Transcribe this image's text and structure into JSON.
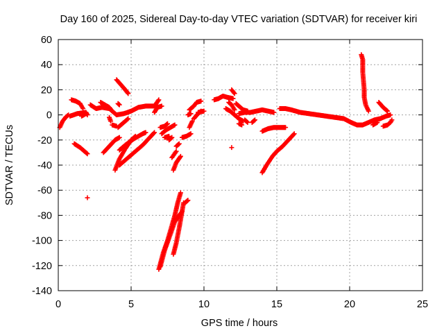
{
  "chart_data": {
    "type": "scatter",
    "title": "Day 160 of 2025, Sidereal Day-to-day VTEC variation (SDTVAR) for receiver kiri",
    "xlabel": "GPS time / hours",
    "ylabel": "SDTVAR / TECUs",
    "xlim": [
      0,
      25
    ],
    "ylim": [
      -140,
      60
    ],
    "xticks": [
      0,
      5,
      10,
      15,
      20,
      25
    ],
    "yticks": [
      -140,
      -120,
      -100,
      -80,
      -60,
      -40,
      -20,
      0,
      20,
      40,
      60
    ],
    "grid": true,
    "legend": "none",
    "marker": "plus",
    "color": "#ff0000",
    "tracks": [
      [
        [
          0.1,
          -10
        ],
        [
          0.3,
          -5
        ],
        [
          0.5,
          -2
        ],
        [
          0.7,
          0
        ]
      ],
      [
        [
          0.8,
          -1
        ],
        [
          1.3,
          1
        ],
        [
          1.9,
          2
        ],
        [
          2.0,
          0
        ]
      ],
      [
        [
          0.9,
          12
        ],
        [
          1.2,
          11
        ],
        [
          1.5,
          9
        ],
        [
          1.7,
          5
        ]
      ],
      [
        [
          1.1,
          -23
        ],
        [
          1.5,
          -26
        ],
        [
          1.8,
          -29
        ],
        [
          2.0,
          -31
        ]
      ],
      [
        [
          2.0,
          -66
        ]
      ],
      [
        [
          2.2,
          8
        ],
        [
          2.6,
          5
        ],
        [
          3.0,
          6
        ],
        [
          3.5,
          5
        ],
        [
          4.0,
          0
        ],
        [
          4.5,
          1
        ],
        [
          5.0,
          3
        ],
        [
          5.5,
          6
        ],
        [
          6.0,
          7
        ],
        [
          6.6,
          7
        ],
        [
          6.9,
          12
        ]
      ],
      [
        [
          2.9,
          10
        ],
        [
          3.2,
          8
        ],
        [
          3.5,
          6
        ],
        [
          3.7,
          3
        ]
      ],
      [
        [
          3.5,
          -2
        ],
        [
          3.6,
          -5
        ]
      ],
      [
        [
          3.7,
          -8
        ],
        [
          4.0,
          -9
        ]
      ],
      [
        [
          1.6,
          -1
        ],
        [
          1.9,
          1
        ]
      ],
      [
        [
          3.1,
          -30
        ],
        [
          3.5,
          -25
        ],
        [
          3.9,
          -20
        ],
        [
          4.2,
          -18
        ]
      ],
      [
        [
          4.0,
          28
        ],
        [
          4.3,
          24
        ],
        [
          4.6,
          20
        ],
        [
          4.8,
          17
        ]
      ],
      [
        [
          3.9,
          -44
        ],
        [
          4.2,
          -35
        ],
        [
          4.6,
          -27
        ],
        [
          5.0,
          -20
        ],
        [
          5.3,
          -17
        ]
      ],
      [
        [
          4.1,
          -10
        ],
        [
          4.5,
          -6
        ],
        [
          4.8,
          -3
        ]
      ],
      [
        [
          4.2,
          -28
        ],
        [
          4.6,
          -24
        ],
        [
          5.2,
          -19
        ],
        [
          5.8,
          -15
        ],
        [
          6.0,
          -14
        ]
      ],
      [
        [
          4.1,
          9
        ],
        [
          4.2,
          8
        ]
      ],
      [
        [
          4.2,
          -40
        ],
        [
          4.8,
          -34
        ],
        [
          5.3,
          -29
        ],
        [
          5.8,
          -24
        ],
        [
          6.2,
          -19
        ],
        [
          6.6,
          -14
        ]
      ],
      [
        [
          6.6,
          2
        ],
        [
          6.8,
          6
        ],
        [
          7.1,
          7
        ]
      ],
      [
        [
          6.9,
          -123
        ],
        [
          7.2,
          -110
        ],
        [
          7.5,
          -100
        ],
        [
          7.8,
          -88
        ],
        [
          8.0,
          -80
        ],
        [
          8.2,
          -70
        ],
        [
          8.4,
          -62
        ]
      ],
      [
        [
          7.0,
          -121
        ],
        [
          7.3,
          -108
        ],
        [
          7.7,
          -95
        ],
        [
          8.0,
          -85
        ],
        [
          8.3,
          -80
        ],
        [
          8.5,
          -77
        ]
      ],
      [
        [
          7.9,
          -111
        ],
        [
          8.1,
          -102
        ],
        [
          8.3,
          -90
        ],
        [
          8.6,
          -70
        ]
      ],
      [
        [
          7.1,
          -15
        ],
        [
          7.4,
          -12
        ],
        [
          7.7,
          -10
        ],
        [
          8.0,
          -8
        ]
      ],
      [
        [
          7.0,
          -10
        ],
        [
          7.3,
          -9
        ],
        [
          7.5,
          -7
        ]
      ],
      [
        [
          7.3,
          -18
        ],
        [
          7.6,
          -17
        ]
      ],
      [
        [
          7.6,
          -20
        ],
        [
          7.8,
          -18
        ]
      ],
      [
        [
          7.9,
          -44
        ],
        [
          8.1,
          -38
        ],
        [
          8.4,
          -33
        ]
      ],
      [
        [
          7.8,
          -34
        ],
        [
          8.1,
          -29
        ]
      ],
      [
        [
          8.1,
          -25
        ],
        [
          8.3,
          -23
        ]
      ],
      [
        [
          8.5,
          -18
        ],
        [
          8.8,
          -17
        ],
        [
          9.1,
          -15
        ]
      ],
      [
        [
          8.7,
          -70
        ],
        [
          8.9,
          -68
        ]
      ],
      [
        [
          9.0,
          -10
        ],
        [
          9.2,
          -5
        ]
      ],
      [
        [
          9.3,
          -3
        ],
        [
          9.6,
          1
        ],
        [
          9.8,
          3
        ]
      ],
      [
        [
          9.0,
          4
        ],
        [
          9.3,
          7
        ],
        [
          9.5,
          10
        ],
        [
          9.8,
          11
        ]
      ],
      [
        [
          9.6,
          2
        ],
        [
          10.0,
          3
        ]
      ],
      [
        [
          8.9,
          0
        ],
        [
          9.1,
          1
        ]
      ],
      [
        [
          10.7,
          12
        ],
        [
          11.0,
          13
        ],
        [
          11.3,
          15
        ],
        [
          11.6,
          14
        ],
        [
          12.0,
          13
        ]
      ],
      [
        [
          11.5,
          5
        ],
        [
          11.8,
          3
        ],
        [
          12.1,
          0
        ],
        [
          12.4,
          -3
        ],
        [
          12.7,
          -5
        ]
      ],
      [
        [
          11.7,
          10
        ],
        [
          11.9,
          8
        ],
        [
          12.1,
          4
        ]
      ],
      [
        [
          11.9,
          20
        ],
        [
          12.1,
          17
        ]
      ],
      [
        [
          12.2,
          9
        ],
        [
          12.4,
          7
        ],
        [
          12.7,
          4
        ],
        [
          13.0,
          3
        ]
      ],
      [
        [
          12.4,
          1
        ],
        [
          12.8,
          2
        ],
        [
          13.2,
          2
        ],
        [
          13.6,
          3
        ],
        [
          14.0,
          4
        ],
        [
          14.4,
          3
        ],
        [
          14.8,
          2
        ]
      ],
      [
        [
          12.8,
          -4
        ],
        [
          13.0,
          -6
        ]
      ],
      [
        [
          13.3,
          -6
        ],
        [
          13.5,
          -4
        ]
      ],
      [
        [
          11.9,
          -26
        ]
      ],
      [
        [
          12.4,
          -7
        ],
        [
          12.6,
          -8
        ]
      ],
      [
        [
          14.0,
          -13
        ],
        [
          14.4,
          -11
        ],
        [
          14.8,
          -10
        ],
        [
          15.2,
          -10
        ],
        [
          15.6,
          -10
        ]
      ],
      [
        [
          14.0,
          -46
        ],
        [
          14.3,
          -40
        ],
        [
          14.7,
          -33
        ],
        [
          15.0,
          -29
        ],
        [
          15.4,
          -25
        ],
        [
          15.8,
          -20
        ],
        [
          16.2,
          -15
        ]
      ],
      [
        [
          15.2,
          5
        ],
        [
          15.6,
          5
        ],
        [
          16.0,
          4
        ],
        [
          16.6,
          2
        ],
        [
          17.2,
          1
        ],
        [
          17.8,
          0
        ],
        [
          18.4,
          -1
        ],
        [
          19.0,
          -2
        ],
        [
          19.6,
          -3
        ],
        [
          20.1,
          -6
        ],
        [
          20.5,
          -8
        ],
        [
          20.9,
          -8
        ],
        [
          21.3,
          -6
        ],
        [
          21.7,
          -4
        ],
        [
          22.1,
          -3
        ],
        [
          22.5,
          -1
        ],
        [
          22.8,
          0
        ]
      ],
      [
        [
          20.8,
          48
        ],
        [
          20.9,
          44
        ],
        [
          20.9,
          34
        ],
        [
          21.0,
          20
        ],
        [
          21.0,
          14
        ],
        [
          21.1,
          8
        ],
        [
          21.3,
          3
        ]
      ],
      [
        [
          21.6,
          -8
        ],
        [
          21.9,
          -6
        ]
      ],
      [
        [
          22.0,
          10
        ],
        [
          22.3,
          6
        ],
        [
          22.6,
          3
        ]
      ],
      [
        [
          22.3,
          -9
        ],
        [
          22.6,
          -8
        ],
        [
          22.8,
          -6
        ],
        [
          22.9,
          -4
        ]
      ]
    ]
  }
}
